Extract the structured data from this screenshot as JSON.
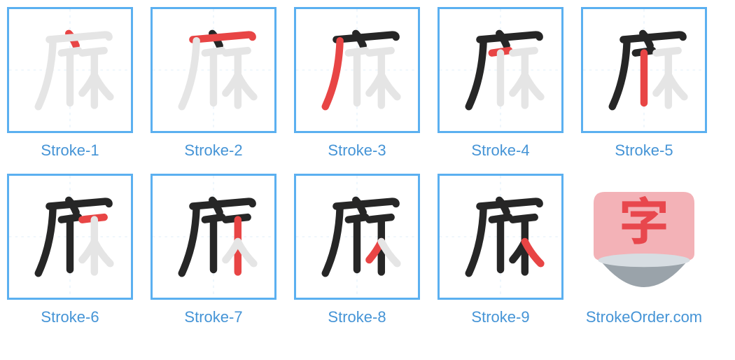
{
  "colors": {
    "border": "#5bb0f0",
    "link": "#4594d6",
    "ghost": "#e5e5e5",
    "black": "#262626",
    "red": "#e84545",
    "logo_bg_top": "#f3b2b7",
    "logo_bg_bottom": "#9aa3aa",
    "logo_text": "#e8474d"
  },
  "captions": [
    "Stroke-1",
    "Stroke-2",
    "Stroke-3",
    "Stroke-4",
    "Stroke-5",
    "Stroke-6",
    "Stroke-7",
    "Stroke-8",
    "Stroke-9"
  ],
  "site_label": "StrokeOrder.com",
  "logo_char": "字",
  "strokes": {
    "comment": "Each stroke is an SVG path in a 200x200 viewBox; order defines the character.",
    "paths": [
      "M 98 40 q 6 6 12 20",
      "M 66 50 q 44 -4 92 -8 q 6 0 6 4",
      "M 72 52 q -2 60 -24 108",
      "M 86 72 q 14 -2 28 -4",
      "M 100 72 l 0 82",
      "M 120 72 q 16 -2 36 -4",
      "M 140 72 l 0 86",
      "M 140 108 q -8 16 -20 30",
      "M 140 108 q 10 20 26 36"
    ],
    "stroke_width": 12
  },
  "guides": {
    "horizontals": [
      50,
      100,
      150
    ],
    "verticals": [
      50,
      100,
      150
    ],
    "color": "#d8eaf7",
    "width": 1
  }
}
